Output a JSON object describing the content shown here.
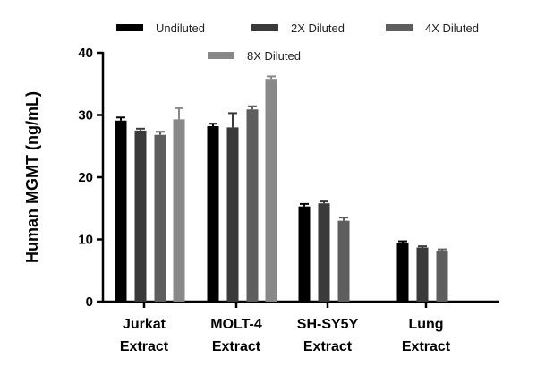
{
  "chart_data": {
    "type": "bar",
    "title": "",
    "xlabel": "",
    "ylabel": "Human MGMT (ng/mL)",
    "ylim": [
      0,
      40
    ],
    "yticks": [
      0,
      10,
      20,
      30,
      40
    ],
    "categories": [
      [
        "Jurkat",
        "Extract"
      ],
      [
        "MOLT-4",
        "Extract"
      ],
      [
        "SH-SY5Y",
        "Extract"
      ],
      [
        "Lung",
        "Extract"
      ]
    ],
    "series": [
      {
        "name": "Undiluted",
        "color": "#000000",
        "values": [
          29.1,
          28.2,
          15.3,
          9.4
        ],
        "errors": [
          0.5,
          0.4,
          0.4,
          0.3
        ]
      },
      {
        "name": "2X Diluted",
        "color": "#3a3a3a",
        "values": [
          27.5,
          28.0,
          15.8,
          8.7
        ],
        "errors": [
          0.3,
          2.3,
          0.3,
          0.2
        ]
      },
      {
        "name": "4X Diluted",
        "color": "#5e5e5e",
        "values": [
          26.8,
          30.9,
          13.0,
          8.2
        ],
        "errors": [
          0.5,
          0.5,
          0.5,
          0.2
        ]
      },
      {
        "name": "8X Diluted",
        "color": "#888888",
        "values": [
          29.3,
          35.8,
          null,
          null
        ],
        "errors": [
          1.8,
          0.4,
          null,
          null
        ]
      }
    ],
    "legend_position": "top"
  }
}
